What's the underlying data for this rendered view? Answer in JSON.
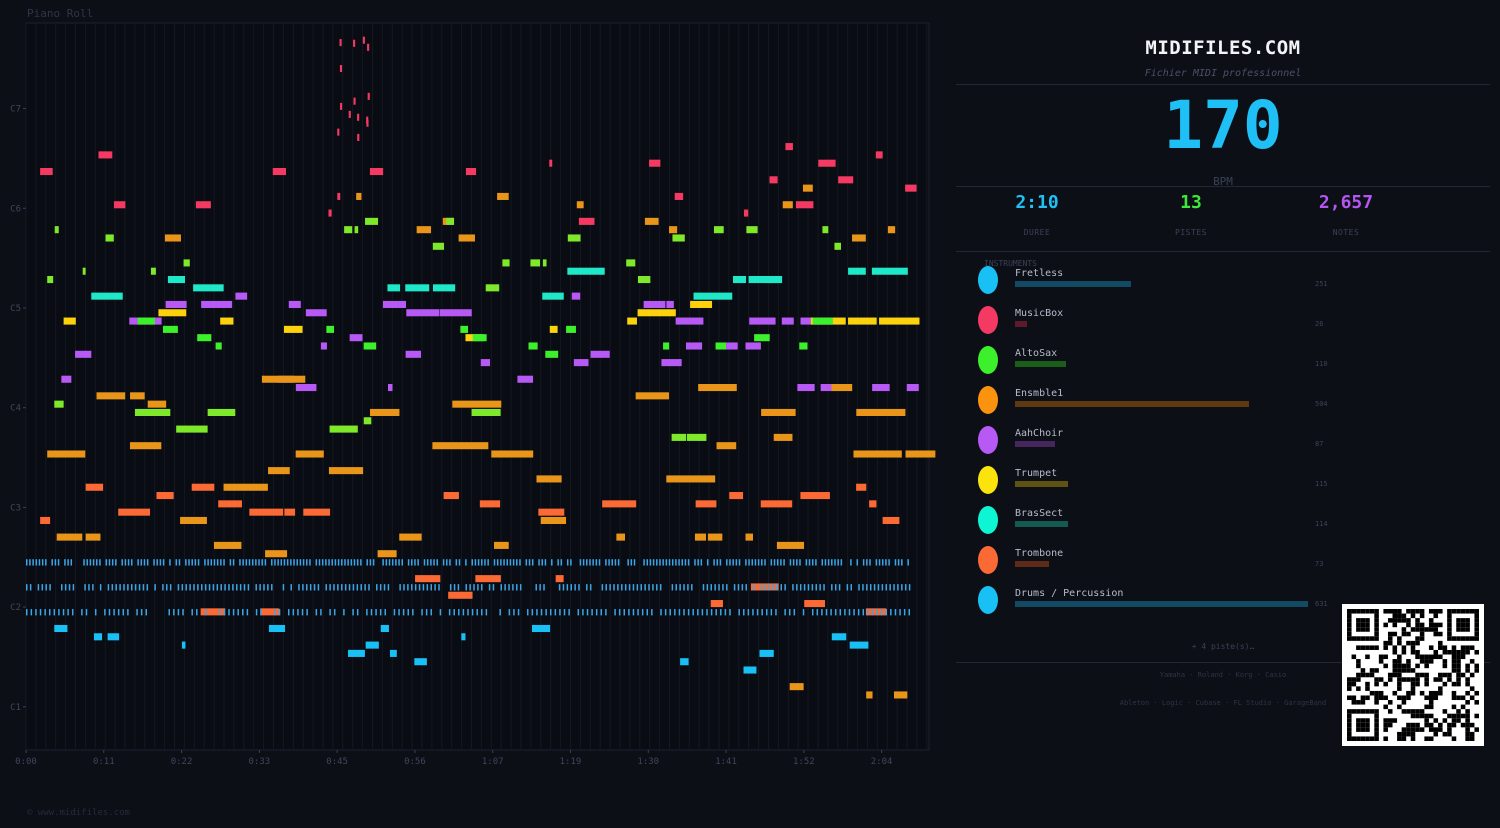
{
  "roll": {
    "title": "Piano Roll",
    "copyright": "© www.midifiles.com",
    "pitch_labels": [
      {
        "label": "C7",
        "pitch": 96
      },
      {
        "label": "C6",
        "pitch": 84
      },
      {
        "label": "C5",
        "pitch": 72
      },
      {
        "label": "C4",
        "pitch": 60
      },
      {
        "label": "C3",
        "pitch": 48
      },
      {
        "label": "C2",
        "pitch": 36
      },
      {
        "label": "C1",
        "pitch": 24
      }
    ],
    "time_labels": [
      {
        "label": "0:00",
        "sec": 0
      },
      {
        "label": "0:11",
        "sec": 11
      },
      {
        "label": "0:22",
        "sec": 22
      },
      {
        "label": "0:33",
        "sec": 33
      },
      {
        "label": "0:45",
        "sec": 44
      },
      {
        "label": "0:56",
        "sec": 55
      },
      {
        "label": "1:07",
        "sec": 66
      },
      {
        "label": "1:19",
        "sec": 77
      },
      {
        "label": "1:30",
        "sec": 88
      },
      {
        "label": "1:41",
        "sec": 99
      },
      {
        "label": "1:52",
        "sec": 110
      },
      {
        "label": "2:04",
        "sec": 121
      }
    ],
    "time_range": [
      0,
      127.7
    ],
    "pitch_range": [
      18.8,
      106.3
    ]
  },
  "panel": {
    "brand": "MIDIFILES.COM",
    "subtitle": "Fichier MIDI professionnel",
    "bpm": "170",
    "bpm_label": "BPM",
    "stats": [
      {
        "value": "2:10",
        "label": "DUREE",
        "color": "#1ec0f5"
      },
      {
        "value": "13",
        "label": "PISTES",
        "color": "#3ee83a"
      },
      {
        "value": "2,657",
        "label": "NOTES",
        "color": "#b556f2"
      }
    ],
    "instruments_header": "INSTRUMENTS",
    "instruments": [
      {
        "name": "Fretless",
        "count": "251",
        "color": "#19c0f6",
        "bar_color": "#124a63",
        "fraction": 0.397
      },
      {
        "name": "MusicBox",
        "count": "26",
        "color": "#f43a63",
        "bar_color": "#5c1a2c",
        "fraction": 0.041
      },
      {
        "name": "AltoSax",
        "count": "110",
        "color": "#3cf02c",
        "bar_color": "#1b5e1a",
        "fraction": 0.174
      },
      {
        "name": "Ensmble1",
        "count": "504",
        "color": "#fb930f",
        "bar_color": "#5e3a12",
        "fraction": 0.8
      },
      {
        "name": "AahChoir",
        "count": "87",
        "color": "#b75af5",
        "bar_color": "#45275e",
        "fraction": 0.138
      },
      {
        "name": "Trumpet",
        "count": "115",
        "color": "#fbe40c",
        "bar_color": "#5e5312",
        "fraction": 0.182
      },
      {
        "name": "BrasSect",
        "count": "114",
        "color": "#0ef5d4",
        "bar_color": "#125a52",
        "fraction": 0.181
      },
      {
        "name": "Trombone",
        "count": "73",
        "color": "#fb6934",
        "bar_color": "#5e2a1a",
        "fraction": 0.116
      },
      {
        "name": "Drums / Percussion",
        "count": "631",
        "color": "#19c0f6",
        "bar_color": "#124a63",
        "fraction": 1.0
      }
    ],
    "more_tracks": "+ 4 piste(s)…",
    "brands_line1": "Yamaha · Roland · Korg · Casio",
    "brands_line2": "Ableton · Logic · Cubase · FL Studio · GarageBand"
  }
}
